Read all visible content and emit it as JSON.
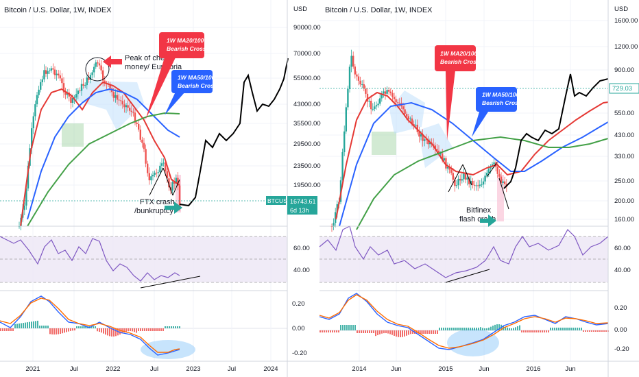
{
  "colors": {
    "ma20": "#e53935",
    "ma50": "#2962ff",
    "ma100": "#43a047",
    "projection": "#000000",
    "rsi": "#7e57c2",
    "rsi_band": "#ede7f6",
    "macd": "#2962ff",
    "signal": "#ff6d00",
    "hist_pos": "#26a69a",
    "hist_neg": "#ef5350",
    "candle_up": "#26a69a",
    "candle_down": "#ef5350",
    "price_tag": "#26a69a",
    "arrow_green": "#26a69a",
    "arrow_red": "#f23645",
    "callout_red": "#f23645",
    "callout_blue": "#2962ff"
  },
  "left_panel": {
    "title": "Bitcoin / U.S. Dollar, 1W, INDEX",
    "currency": "USD",
    "annotations": {
      "peak": "Peak of cheap money/ Euphoria",
      "ftx": "FTX crash /bunkruptcy",
      "callout_ma20_100": "1W MA20/100 Bearish Cross",
      "callout_ma50_100": "1W MA50/100 Bearish Cross"
    },
    "price_tag": {
      "symbol": "BTCUSD",
      "value": "16743.61",
      "countdown": "6d 13h"
    }
  },
  "right_panel": {
    "title": "Bitcoin / U.S. Dollar, 1W, INDEX",
    "currency": "USD",
    "annotations": {
      "bitfinex": "Bitfinex flash crash",
      "callout_ma20_100": "1W MA20/100 Bearish Cross",
      "callout_ma50_100": "1W MA50/100 Bearish Cross"
    },
    "price_tag": {
      "value": "729.03"
    }
  },
  "chart_data": [
    {
      "type": "line",
      "title": "Bitcoin / U.S. Dollar, 1W, INDEX",
      "y_unit": "USD",
      "y_scale": "log",
      "ylim": [
        15000,
        90000
      ],
      "y_ticks": [
        "90000.00",
        "70000.00",
        "55000.00",
        "43000.00",
        "35500.00",
        "29500.00",
        "23500.00",
        "19500.00"
      ],
      "x_ticks": [
        "2021",
        "Jul",
        "2022",
        "Jul",
        "2023",
        "Jul",
        "2024"
      ],
      "series": [
        {
          "name": "BTCUSD",
          "x": [
            "2020-10",
            "2021-01",
            "2021-04",
            "2021-07",
            "2021-11",
            "2022-01",
            "2022-06",
            "2022-11"
          ],
          "y": [
            13000,
            33000,
            58000,
            33000,
            67000,
            38000,
            20000,
            16000
          ]
        },
        {
          "x": [
            "2022-11",
            "2023-03",
            "2023-07",
            "2023-10",
            "2023-12",
            "2024-03"
          ],
          "y": [
            16500,
            22000,
            29000,
            28000,
            42000,
            70000
          ]
        }
      ],
      "rsi": {
        "levels": [
          70,
          50,
          30
        ],
        "y_ticks": [
          "60.00",
          "40.00"
        ]
      },
      "macd": {
        "y_ticks": [
          "0.20",
          "0.00",
          "-0.20"
        ]
      },
      "grid": true
    },
    {
      "type": "line",
      "title": "Bitcoin / U.S. Dollar, 1W, INDEX",
      "y_unit": "USD",
      "y_scale": "log",
      "ylim": [
        150,
        1600
      ],
      "y_ticks": [
        "1600.00",
        "1200.00",
        "900.00",
        "729.03",
        "550.00",
        "430.00",
        "330.00",
        "250.00",
        "200.00",
        "160.00"
      ],
      "x_ticks": [
        "2014",
        "Jun",
        "2015",
        "Jun",
        "2016",
        "Jun"
      ],
      "series": [
        {
          "name": "BTCUSD",
          "x": [
            "2013-10",
            "2013-12",
            "2014-04",
            "2014-07",
            "2015-01",
            "2015-06",
            "2015-08",
            "2015-11",
            "2016-06",
            "2016-10"
          ],
          "y": [
            160,
            1100,
            450,
            620,
            180,
            230,
            210,
            380,
            700,
            650
          ]
        }
      ],
      "rsi": {
        "levels": [
          70,
          50,
          30
        ],
        "y_ticks": [
          "60.00",
          "40.00"
        ]
      },
      "macd": {
        "y_ticks": [
          "0.20",
          "0.00",
          "-0.20"
        ]
      },
      "grid": true
    }
  ]
}
